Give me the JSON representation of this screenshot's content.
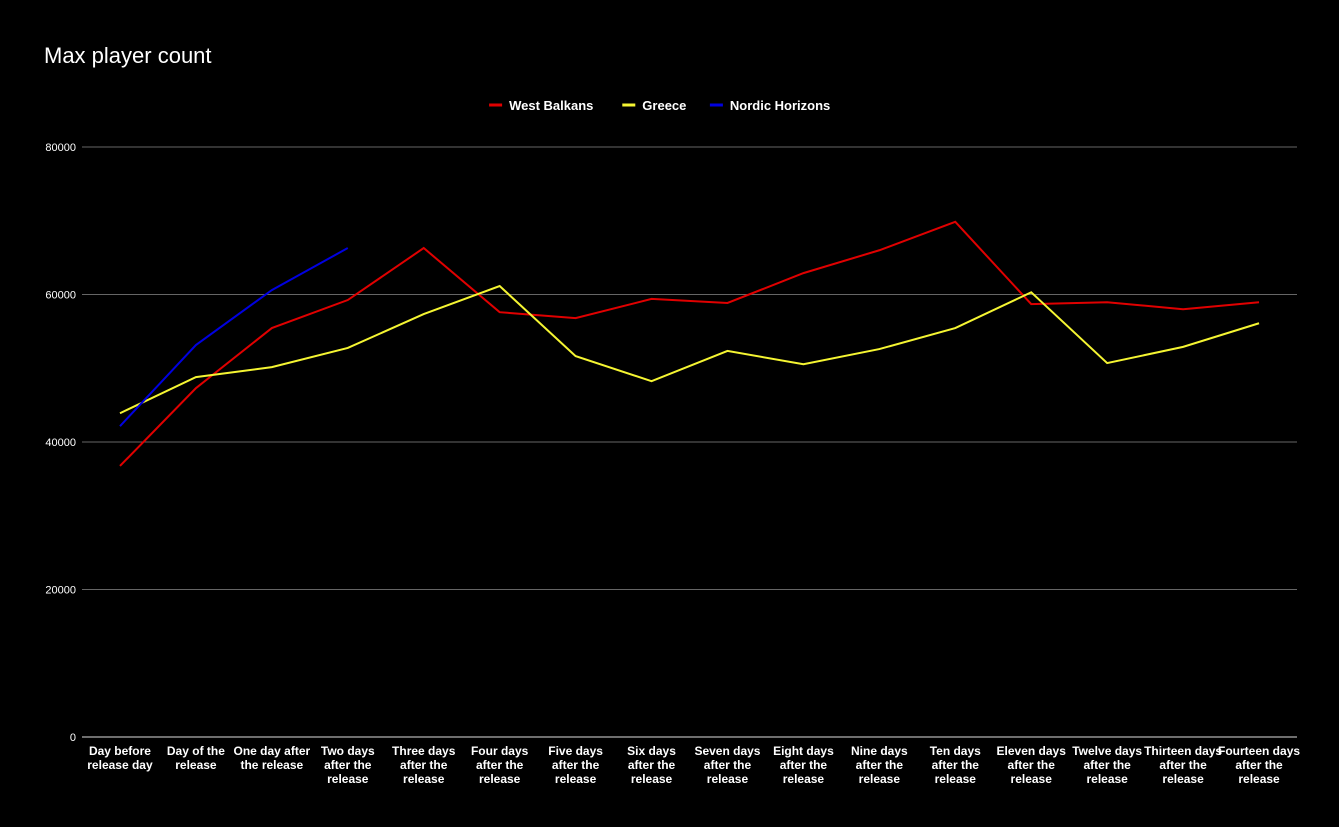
{
  "chart_data": {
    "type": "line",
    "title": "Max player count",
    "categories": [
      "Day before release day",
      "Day of the release",
      "One day after the release",
      "Two days after the release",
      "Three days after the release",
      "Four days after the release",
      "Five days after the release",
      "Six days after the release",
      "Seven days after the release",
      "Eight days after the release",
      "Nine days after the release",
      "Ten days after the release",
      "Eleven days after the release",
      "Twelve days after the release",
      "Thirteen days after the release",
      "Fourteen days after the release"
    ],
    "series": [
      {
        "name": "West Balkans",
        "color": "#e00000",
        "values": [
          36750,
          47300,
          55450,
          59250,
          66300,
          57600,
          56800,
          59400,
          58850,
          62900,
          66000,
          69850,
          58700,
          58950,
          58000,
          58950
        ]
      },
      {
        "name": "Greece",
        "color": "#f5f532",
        "values": [
          43900,
          48800,
          50150,
          52750,
          57350,
          61150,
          51650,
          48250,
          52350,
          50550,
          52600,
          55450,
          60300,
          50700,
          52900,
          56100
        ]
      },
      {
        "name": "Nordic Horizons",
        "color": "#0000e0",
        "values": [
          42150,
          53150,
          60600,
          66300,
          null,
          null,
          null,
          null,
          null,
          null,
          null,
          null,
          null,
          null,
          null,
          null
        ]
      }
    ],
    "ylim": [
      0,
      80000
    ],
    "yticks": [
      0,
      20000,
      40000,
      60000,
      80000
    ],
    "grid": true,
    "legend": "top"
  }
}
